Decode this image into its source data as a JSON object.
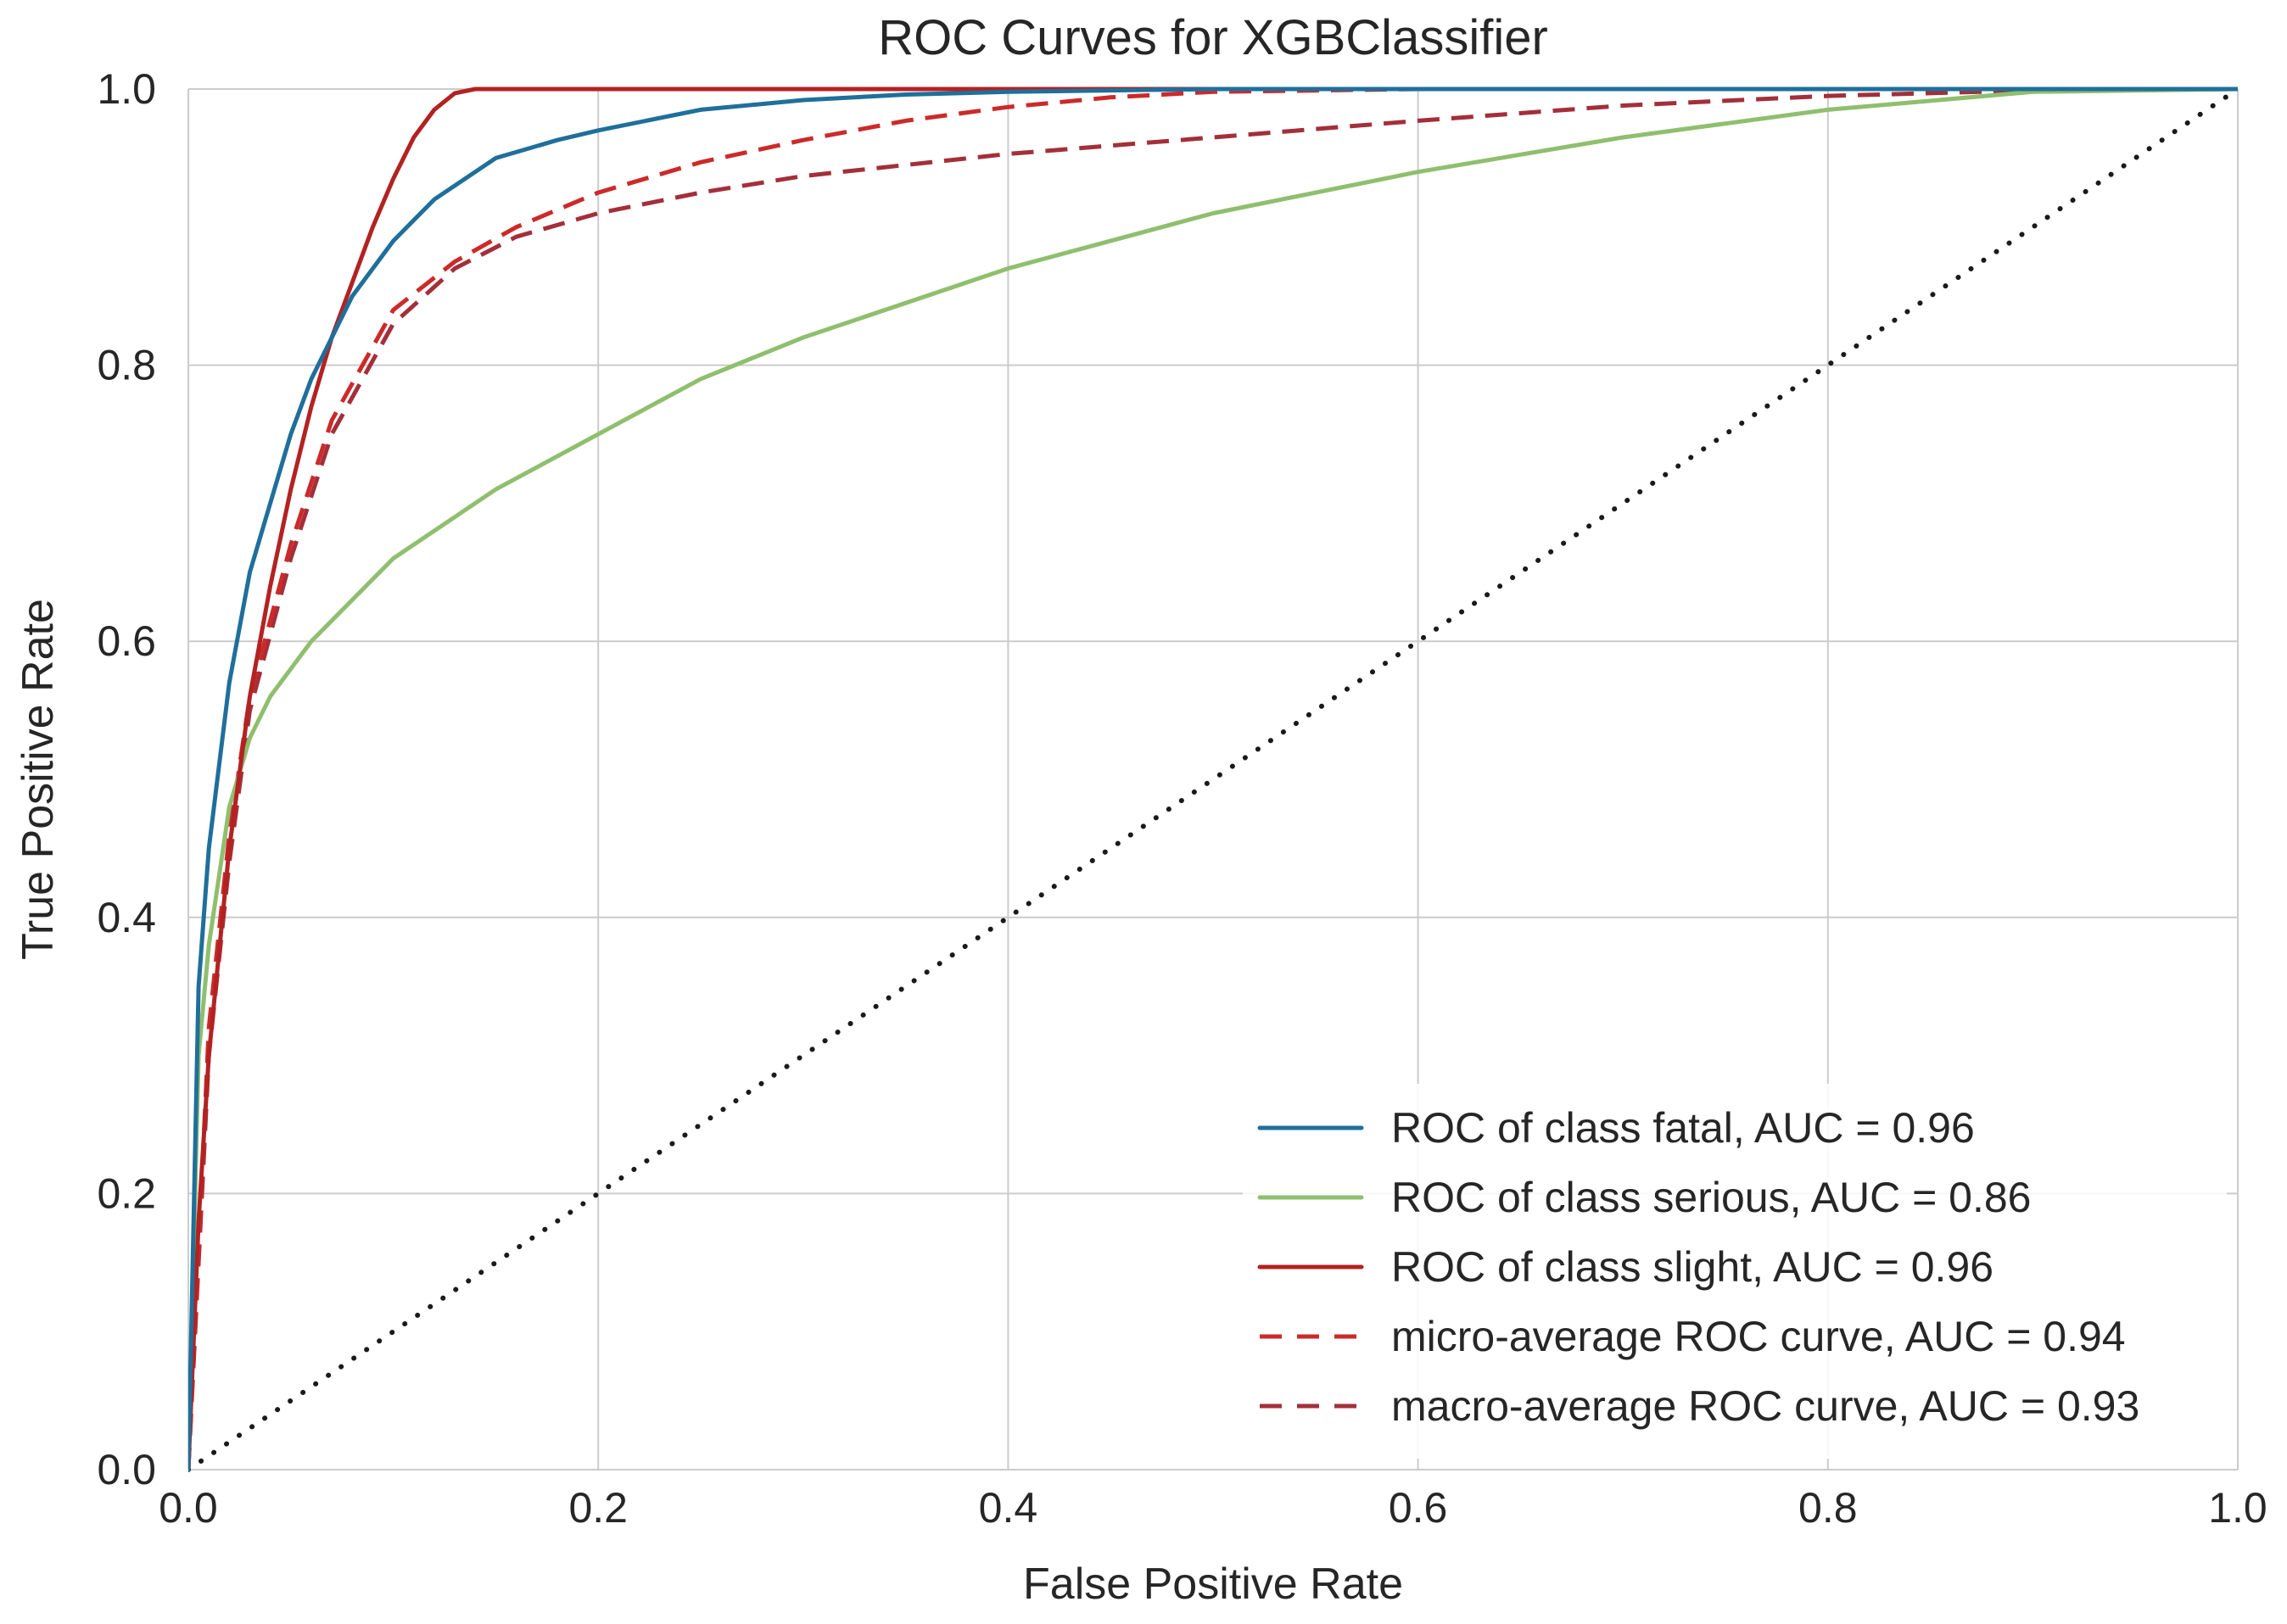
{
  "chart_data": {
    "type": "line",
    "title": "ROC Curves for XGBClassifier",
    "xlabel": "False Positive Rate",
    "ylabel": "True Positive Rate",
    "xlim": [
      0.0,
      1.0
    ],
    "ylim": [
      0.0,
      1.0
    ],
    "xticks": [
      "0.0",
      "0.2",
      "0.4",
      "0.6",
      "0.8",
      "1.0"
    ],
    "yticks": [
      "0.0",
      "0.2",
      "0.4",
      "0.6",
      "0.8",
      "1.0"
    ],
    "grid": true,
    "legend_position": "lower-right",
    "series": [
      {
        "name": "ROC of class fatal, AUC = 0.96",
        "color": "#1f6f9b",
        "style": "solid",
        "x": [
          0.0,
          0.005,
          0.01,
          0.02,
          0.03,
          0.04,
          0.05,
          0.06,
          0.08,
          0.1,
          0.12,
          0.15,
          0.18,
          0.2,
          0.25,
          0.3,
          0.35,
          0.4,
          0.5,
          0.6,
          1.0
        ],
        "y": [
          0.0,
          0.35,
          0.45,
          0.57,
          0.65,
          0.7,
          0.75,
          0.79,
          0.85,
          0.89,
          0.92,
          0.95,
          0.963,
          0.97,
          0.985,
          0.992,
          0.996,
          0.998,
          1.0,
          1.0,
          1.0
        ]
      },
      {
        "name": "ROC of class serious, AUC = 0.86",
        "color": "#8fbf6e",
        "style": "solid",
        "x": [
          0.0,
          0.005,
          0.01,
          0.02,
          0.03,
          0.04,
          0.06,
          0.08,
          0.1,
          0.15,
          0.2,
          0.25,
          0.3,
          0.4,
          0.5,
          0.6,
          0.7,
          0.8,
          0.9,
          1.0
        ],
        "y": [
          0.0,
          0.3,
          0.38,
          0.48,
          0.53,
          0.56,
          0.6,
          0.63,
          0.66,
          0.71,
          0.75,
          0.79,
          0.82,
          0.87,
          0.91,
          0.94,
          0.965,
          0.985,
          0.998,
          1.0
        ]
      },
      {
        "name": "ROC of class slight, AUC = 0.96",
        "color": "#b32222",
        "style": "solid",
        "x": [
          0.0,
          0.005,
          0.01,
          0.02,
          0.03,
          0.04,
          0.05,
          0.06,
          0.07,
          0.08,
          0.09,
          0.1,
          0.11,
          0.12,
          0.13,
          0.14,
          0.2,
          0.5,
          1.0
        ],
        "y": [
          0.0,
          0.18,
          0.3,
          0.45,
          0.56,
          0.64,
          0.71,
          0.77,
          0.82,
          0.86,
          0.9,
          0.935,
          0.965,
          0.985,
          0.997,
          1.0,
          1.0,
          1.0,
          1.0
        ]
      },
      {
        "name": "micro-average ROC curve, AUC = 0.94",
        "color": "#cc2a2a",
        "style": "dashed",
        "x": [
          0.0,
          0.01,
          0.02,
          0.03,
          0.05,
          0.07,
          0.1,
          0.13,
          0.16,
          0.2,
          0.25,
          0.3,
          0.35,
          0.4,
          0.45,
          0.5,
          0.6,
          1.0
        ],
        "y": [
          0.0,
          0.32,
          0.46,
          0.56,
          0.67,
          0.76,
          0.84,
          0.875,
          0.9,
          0.925,
          0.947,
          0.963,
          0.977,
          0.987,
          0.994,
          0.998,
          1.0,
          1.0
        ]
      },
      {
        "name": "macro-average ROC curve, AUC = 0.93",
        "color": "#a32f3a",
        "style": "dashed",
        "x": [
          0.0,
          0.01,
          0.02,
          0.03,
          0.05,
          0.07,
          0.1,
          0.13,
          0.16,
          0.2,
          0.25,
          0.3,
          0.4,
          0.5,
          0.6,
          0.7,
          0.8,
          0.9,
          1.0
        ],
        "y": [
          0.0,
          0.3,
          0.44,
          0.55,
          0.66,
          0.75,
          0.83,
          0.87,
          0.893,
          0.91,
          0.925,
          0.937,
          0.953,
          0.965,
          0.977,
          0.988,
          0.995,
          0.999,
          1.0
        ]
      },
      {
        "name": "diagonal",
        "color": "#1a1a1a",
        "style": "dotted",
        "x": [
          0.0,
          1.0
        ],
        "y": [
          0.0,
          1.0
        ]
      }
    ]
  }
}
